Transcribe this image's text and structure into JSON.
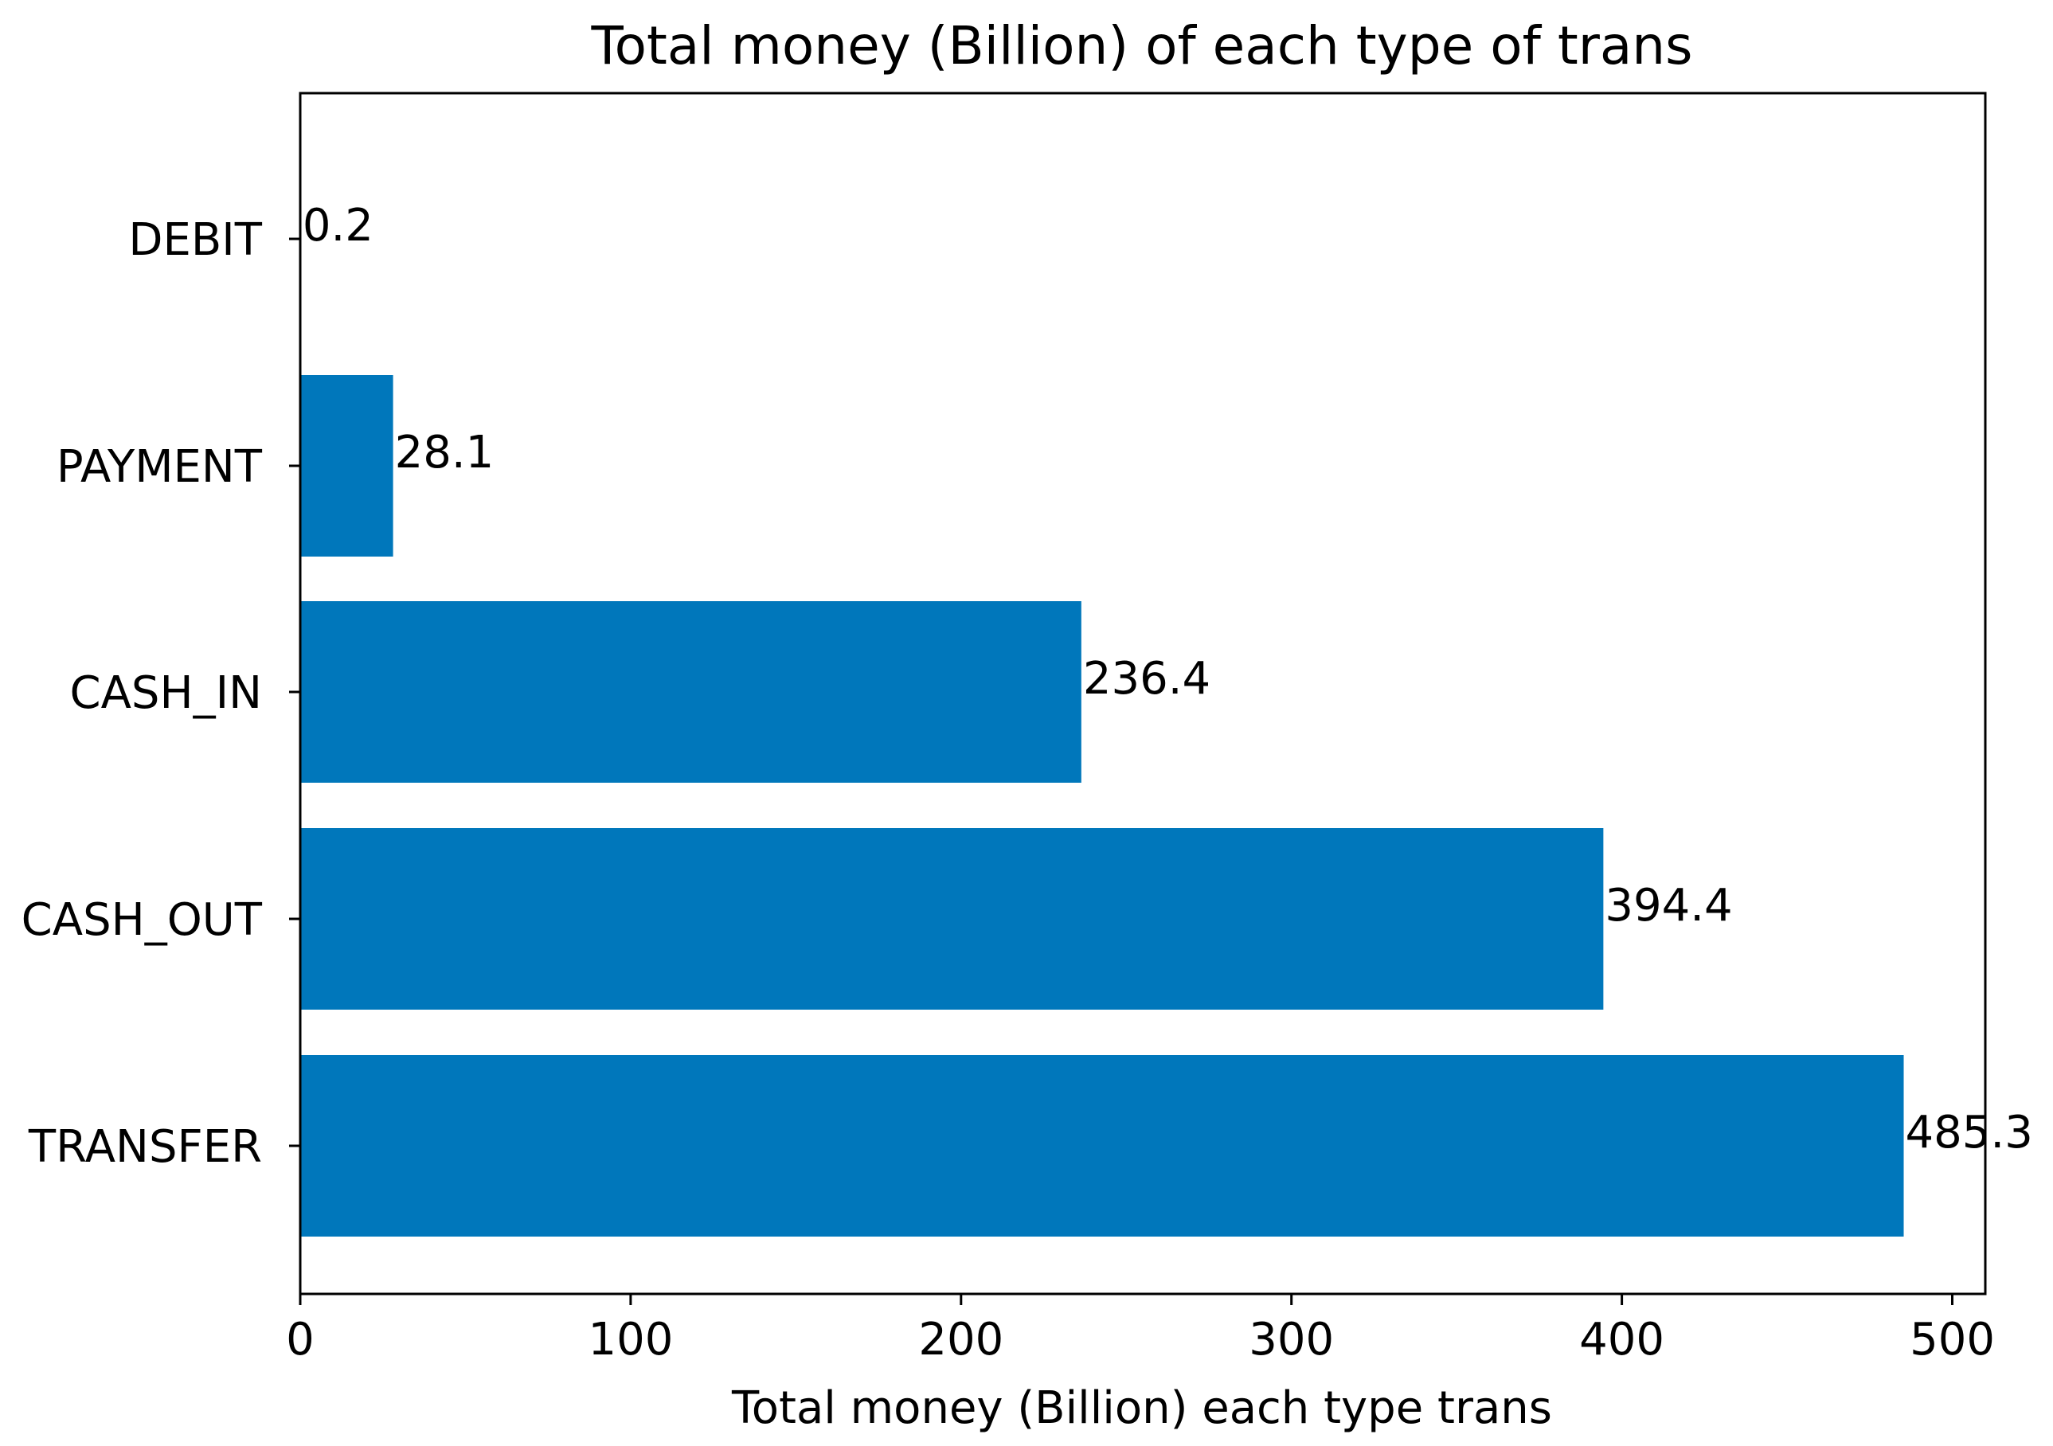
{
  "chart_data": {
    "type": "bar",
    "orientation": "horizontal",
    "title": "Total money (Billion) of each type of trans",
    "xlabel": "Total money (Billion) each type trans",
    "ylabel": "",
    "categories": [
      "DEBIT",
      "PAYMENT",
      "CASH_IN",
      "CASH_OUT",
      "TRANSFER"
    ],
    "values": [
      0.2,
      28.1,
      236.4,
      394.4,
      485.3
    ],
    "value_labels": [
      "0.2",
      "28.1",
      "236.4",
      "394.4",
      "485.3"
    ],
    "xlim": [
      0,
      510
    ],
    "xticks": [
      0,
      100,
      200,
      300,
      400,
      500
    ],
    "xtick_labels": [
      "0",
      "100",
      "200",
      "300",
      "400",
      "500"
    ],
    "grid": false,
    "bar_color": "#0077bb"
  }
}
